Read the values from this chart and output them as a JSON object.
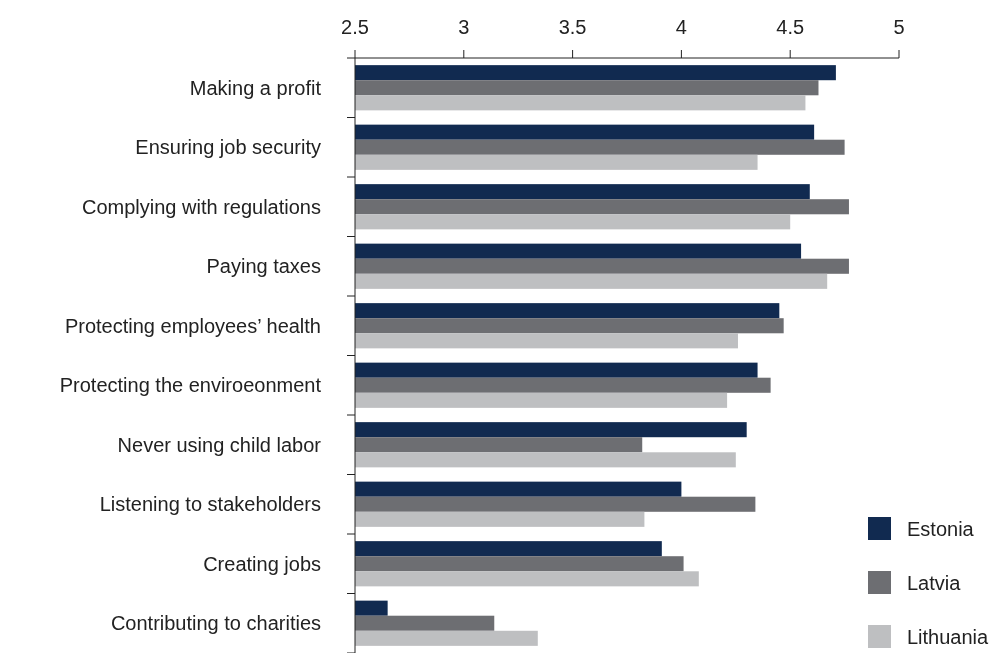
{
  "chart_data": {
    "type": "bar",
    "orientation": "horizontal",
    "categories": [
      "Making a profit",
      "Ensuring job security",
      "Complying with regulations",
      "Paying taxes",
      "Protecting employees’ health",
      "Protecting the enviroeonment",
      "Never using child labor",
      "Listening to stakeholders",
      "Creating jobs",
      "Contributing to charities"
    ],
    "series": [
      {
        "name": "Estonia",
        "color": "#112a50",
        "values": [
          4.71,
          4.61,
          4.59,
          4.55,
          4.45,
          4.35,
          4.3,
          4.0,
          3.91,
          2.65
        ]
      },
      {
        "name": "Latvia",
        "color": "#6d6e72",
        "values": [
          4.63,
          4.75,
          4.77,
          4.77,
          4.47,
          4.41,
          3.82,
          4.34,
          4.01,
          3.14
        ]
      },
      {
        "name": "Lithuania",
        "color": "#bebfc1",
        "values": [
          4.57,
          4.35,
          4.5,
          4.67,
          4.26,
          4.21,
          4.25,
          3.83,
          4.08,
          3.34
        ]
      }
    ],
    "xlim": [
      2.5,
      5
    ],
    "xticks": [
      2.5,
      3,
      3.5,
      4,
      4.5,
      5
    ],
    "legend": "bottom right"
  }
}
